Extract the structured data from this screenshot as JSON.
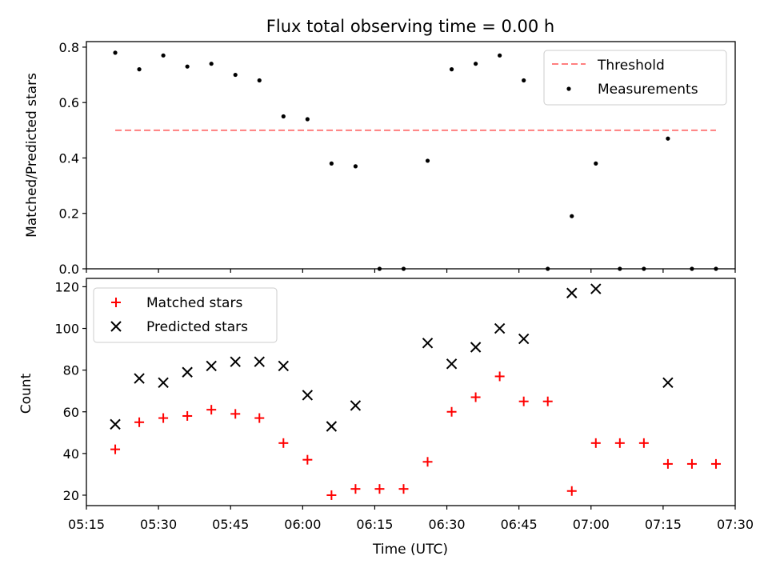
{
  "chart_data": [
    {
      "type": "scatter",
      "title": "Flux total observing time = 0.00 h",
      "xlabel": "",
      "ylabel": "Matched/Predicted stars",
      "x_tick_labels_visible": false,
      "ylim": [
        0,
        0.82
      ],
      "yticks": [
        0.0,
        0.2,
        0.4,
        0.6,
        0.8
      ],
      "ytick_labels": [
        "0.0",
        "0.2",
        "0.4",
        "0.6",
        "0.8"
      ],
      "legend": {
        "loc": "upper right",
        "entries": [
          "Threshold",
          "Measurements"
        ]
      },
      "series": [
        {
          "name": "Threshold",
          "style": "dashed-line",
          "color": "#ff7f7f",
          "points": [
            [
              "05:21",
              0.5
            ],
            [
              "07:26",
              0.5
            ]
          ]
        },
        {
          "name": "Measurements",
          "style": "dot",
          "color": "#000000",
          "points": [
            [
              "05:21",
              0.78
            ],
            [
              "05:26",
              0.72
            ],
            [
              "05:31",
              0.77
            ],
            [
              "05:36",
              0.73
            ],
            [
              "05:41",
              0.74
            ],
            [
              "05:46",
              0.7
            ],
            [
              "05:51",
              0.68
            ],
            [
              "05:56",
              0.55
            ],
            [
              "06:01",
              0.54
            ],
            [
              "06:06",
              0.38
            ],
            [
              "06:11",
              0.37
            ],
            [
              "06:16",
              0.0
            ],
            [
              "06:21",
              0.0
            ],
            [
              "06:26",
              0.39
            ],
            [
              "06:31",
              0.72
            ],
            [
              "06:36",
              0.74
            ],
            [
              "06:41",
              0.77
            ],
            [
              "06:46",
              0.68
            ],
            [
              "06:51",
              0.0
            ],
            [
              "06:56",
              0.19
            ],
            [
              "07:01",
              0.38
            ],
            [
              "07:06",
              0.0
            ],
            [
              "07:11",
              0.0
            ],
            [
              "07:16",
              0.47
            ],
            [
              "07:21",
              0.0
            ],
            [
              "07:26",
              0.0
            ]
          ]
        }
      ]
    },
    {
      "type": "scatter",
      "xlabel": "Time (UTC)",
      "ylabel": "Count",
      "ylim": [
        15,
        124
      ],
      "yticks": [
        20,
        40,
        60,
        80,
        100,
        120
      ],
      "legend": {
        "loc": "upper left",
        "entries": [
          "Matched stars",
          "Predicted stars"
        ]
      },
      "series": [
        {
          "name": "Matched stars",
          "marker": "plus",
          "color": "#ff0000",
          "points": [
            [
              "05:21",
              42
            ],
            [
              "05:26",
              55
            ],
            [
              "05:31",
              57
            ],
            [
              "05:36",
              58
            ],
            [
              "05:41",
              61
            ],
            [
              "05:46",
              59
            ],
            [
              "05:51",
              57
            ],
            [
              "05:56",
              45
            ],
            [
              "06:01",
              37
            ],
            [
              "06:06",
              20
            ],
            [
              "06:11",
              23
            ],
            [
              "06:16",
              23
            ],
            [
              "06:21",
              23
            ],
            [
              "06:26",
              36
            ],
            [
              "06:31",
              60
            ],
            [
              "06:36",
              67
            ],
            [
              "06:41",
              77
            ],
            [
              "06:46",
              65
            ],
            [
              "06:51",
              65
            ],
            [
              "06:56",
              22
            ],
            [
              "07:01",
              45
            ],
            [
              "07:06",
              45
            ],
            [
              "07:11",
              45
            ],
            [
              "07:16",
              35
            ],
            [
              "07:21",
              35
            ],
            [
              "07:26",
              35
            ]
          ]
        },
        {
          "name": "Predicted stars",
          "marker": "x",
          "color": "#000000",
          "points": [
            [
              "05:21",
              54
            ],
            [
              "05:26",
              76
            ],
            [
              "05:31",
              74
            ],
            [
              "05:36",
              79
            ],
            [
              "05:41",
              82
            ],
            [
              "05:46",
              84
            ],
            [
              "05:51",
              84
            ],
            [
              "05:56",
              82
            ],
            [
              "06:01",
              68
            ],
            [
              "06:06",
              53
            ],
            [
              "06:11",
              63
            ],
            [
              "06:26",
              93
            ],
            [
              "06:31",
              83
            ],
            [
              "06:36",
              91
            ],
            [
              "06:41",
              100
            ],
            [
              "06:46",
              95
            ],
            [
              "06:56",
              117
            ],
            [
              "07:01",
              119
            ],
            [
              "07:16",
              74
            ]
          ]
        }
      ]
    }
  ],
  "x_axis": {
    "range": [
      "05:15",
      "07:30"
    ],
    "ticks": [
      "05:15",
      "05:30",
      "05:45",
      "06:00",
      "06:15",
      "06:30",
      "06:45",
      "07:00",
      "07:15",
      "07:30"
    ]
  }
}
